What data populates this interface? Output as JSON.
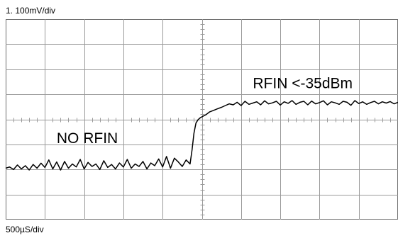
{
  "chart_data": {
    "type": "line",
    "channel_label": "1.   100mV/div",
    "timebase_label": "500µS/div",
    "xlim": [
      0,
      10
    ],
    "ylim": [
      -4,
      4
    ],
    "grid": true,
    "series": [
      {
        "x": [
          0,
          0.1,
          0.2,
          0.3,
          0.4,
          0.5,
          0.6,
          0.7,
          0.8,
          0.9,
          1.0,
          1.1,
          1.2,
          1.3,
          1.4,
          1.5,
          1.6,
          1.7,
          1.8,
          1.9,
          2.0,
          2.1,
          2.2,
          2.3,
          2.4,
          2.5,
          2.6,
          2.7,
          2.8,
          2.9,
          3.0,
          3.1,
          3.2,
          3.3,
          3.4,
          3.5,
          3.6,
          3.7,
          3.8,
          3.9,
          4.0,
          4.1,
          4.2,
          4.3,
          4.4,
          4.5,
          4.6,
          4.7,
          4.75,
          4.8,
          4.85,
          4.9,
          4.95,
          5.0,
          5.1,
          5.2,
          5.3,
          5.4,
          5.5,
          5.6,
          5.7,
          5.8,
          5.9,
          6.0,
          6.1,
          6.2,
          6.3,
          6.4,
          6.5,
          6.6,
          6.7,
          6.8,
          6.9,
          7.0,
          7.1,
          7.2,
          7.3,
          7.4,
          7.5,
          7.6,
          7.7,
          7.8,
          7.9,
          8.0,
          8.1,
          8.2,
          8.3,
          8.4,
          8.5,
          8.6,
          8.7,
          8.8,
          8.9,
          9.0,
          9.1,
          9.2,
          9.3,
          9.4,
          9.5,
          9.6,
          9.7,
          9.8,
          9.9,
          10.0
        ],
        "y": [
          -1.95,
          -1.9,
          -2.0,
          -1.82,
          -1.98,
          -1.85,
          -2.02,
          -1.8,
          -1.95,
          -1.75,
          -1.92,
          -1.62,
          -1.98,
          -1.7,
          -2.02,
          -1.68,
          -1.95,
          -1.78,
          -1.9,
          -1.6,
          -1.98,
          -1.72,
          -1.88,
          -1.78,
          -2.0,
          -1.65,
          -1.92,
          -1.8,
          -1.98,
          -1.74,
          -1.9,
          -1.6,
          -1.95,
          -1.78,
          -1.88,
          -1.68,
          -1.98,
          -1.74,
          -1.85,
          -1.58,
          -1.9,
          -1.48,
          -1.95,
          -1.55,
          -1.7,
          -1.88,
          -1.62,
          -1.78,
          -1.22,
          -0.55,
          -0.15,
          -0.02,
          0.05,
          0.1,
          0.18,
          0.3,
          0.36,
          0.42,
          0.48,
          0.55,
          0.62,
          0.58,
          0.68,
          0.55,
          0.72,
          0.6,
          0.65,
          0.7,
          0.58,
          0.74,
          0.62,
          0.66,
          0.72,
          0.57,
          0.7,
          0.64,
          0.75,
          0.6,
          0.68,
          0.72,
          0.58,
          0.73,
          0.62,
          0.67,
          0.74,
          0.58,
          0.7,
          0.66,
          0.6,
          0.72,
          0.68,
          0.56,
          0.75,
          0.63,
          0.7,
          0.6,
          0.67,
          0.72,
          0.62,
          0.7,
          0.65,
          0.71,
          0.62,
          0.68
        ]
      }
    ],
    "annotations": [
      {
        "text": "NO RFIN",
        "x": 1.3,
        "y": -0.95
      },
      {
        "text": "RFIN <-35dBm",
        "x": 6.3,
        "y": 1.25
      }
    ]
  }
}
